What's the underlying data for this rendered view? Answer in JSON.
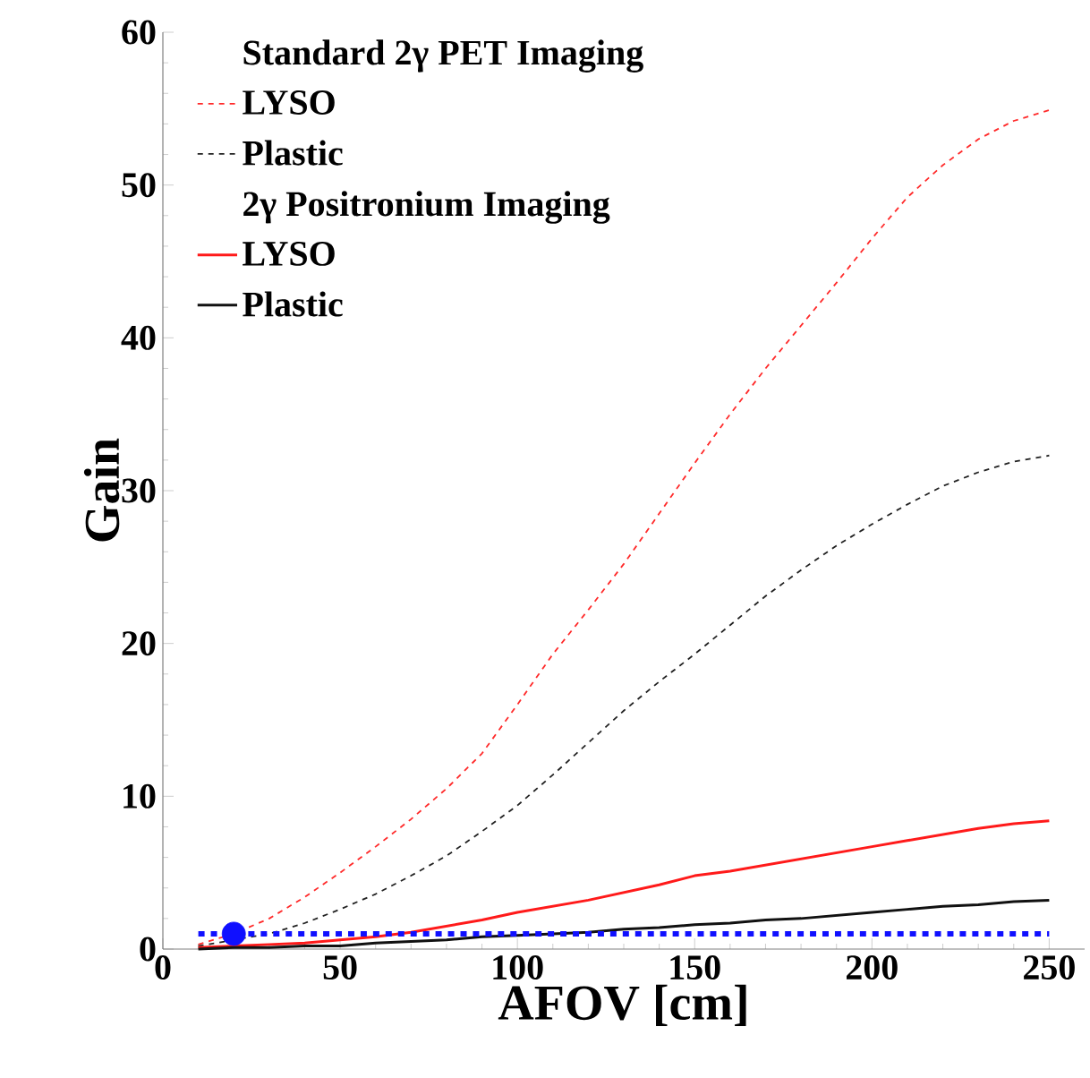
{
  "chart_data": {
    "type": "line",
    "xlabel": "AFOV [cm]",
    "ylabel": "Gain",
    "xlim": [
      0,
      260
    ],
    "ylim": [
      0,
      60
    ],
    "xticks": [
      0,
      50,
      100,
      150,
      200,
      250
    ],
    "yticks": [
      0,
      10,
      20,
      30,
      40,
      50,
      60
    ],
    "grid": false,
    "legend": "top left",
    "marker": "none",
    "annotations": [
      "Standard 2γ PET Imaging",
      "2γ Positronium Imaging"
    ],
    "series": [
      {
        "name": "LYSO",
        "color": "#ff2a2a",
        "line_style": "dashed",
        "x": [
          10,
          20,
          30,
          40,
          50,
          60,
          70,
          80,
          90,
          100,
          110,
          120,
          130,
          140,
          150,
          160,
          170,
          180,
          190,
          200,
          210,
          220,
          230,
          240,
          250
        ],
        "values": [
          0.3,
          1.0,
          2.0,
          3.4,
          5.0,
          6.7,
          8.5,
          10.5,
          12.8,
          16.0,
          19.3,
          22.2,
          25.2,
          28.5,
          31.8,
          35.0,
          38.0,
          40.8,
          43.6,
          46.5,
          49.2,
          51.3,
          53.0,
          54.2,
          54.9
        ]
      },
      {
        "name": "Plastic",
        "color": "#222222",
        "line_style": "dashed",
        "x": [
          10,
          20,
          30,
          40,
          50,
          60,
          70,
          80,
          90,
          100,
          110,
          120,
          130,
          140,
          150,
          160,
          170,
          180,
          190,
          200,
          210,
          220,
          230,
          240,
          250
        ],
        "values": [
          0.2,
          0.6,
          1.0,
          1.7,
          2.6,
          3.6,
          4.8,
          6.1,
          7.7,
          9.4,
          11.4,
          13.5,
          15.6,
          17.5,
          19.3,
          21.2,
          23.1,
          24.8,
          26.4,
          27.8,
          29.1,
          30.3,
          31.2,
          31.9,
          32.3
        ]
      },
      {
        "name": "LYSO",
        "color": "#ff1a1a",
        "line_style": "solid",
        "x": [
          10,
          20,
          30,
          40,
          50,
          60,
          70,
          80,
          90,
          100,
          110,
          120,
          130,
          140,
          150,
          160,
          170,
          180,
          190,
          200,
          210,
          220,
          230,
          240,
          250
        ],
        "values": [
          0.1,
          0.2,
          0.3,
          0.4,
          0.6,
          0.8,
          1.1,
          1.5,
          1.9,
          2.4,
          2.8,
          3.2,
          3.7,
          4.2,
          4.8,
          5.1,
          5.5,
          5.9,
          6.3,
          6.7,
          7.1,
          7.5,
          7.9,
          8.2,
          8.4
        ]
      },
      {
        "name": "Plastic",
        "color": "#111111",
        "line_style": "solid",
        "x": [
          10,
          20,
          30,
          40,
          50,
          60,
          70,
          80,
          90,
          100,
          110,
          120,
          130,
          140,
          150,
          160,
          170,
          180,
          190,
          200,
          210,
          220,
          230,
          240,
          250
        ],
        "values": [
          0.0,
          0.1,
          0.1,
          0.2,
          0.2,
          0.4,
          0.5,
          0.6,
          0.8,
          0.9,
          1.0,
          1.1,
          1.3,
          1.4,
          1.6,
          1.7,
          1.9,
          2.0,
          2.2,
          2.4,
          2.6,
          2.8,
          2.9,
          3.1,
          3.2
        ]
      },
      {
        "color": "#1010ff",
        "line_style": "dotted",
        "x": [
          10,
          250
        ],
        "values": [
          1,
          1
        ]
      },
      {
        "type": "scatter",
        "marker": "circle",
        "color": "#1010ff",
        "x": [
          20
        ],
        "values": [
          1
        ]
      }
    ]
  }
}
